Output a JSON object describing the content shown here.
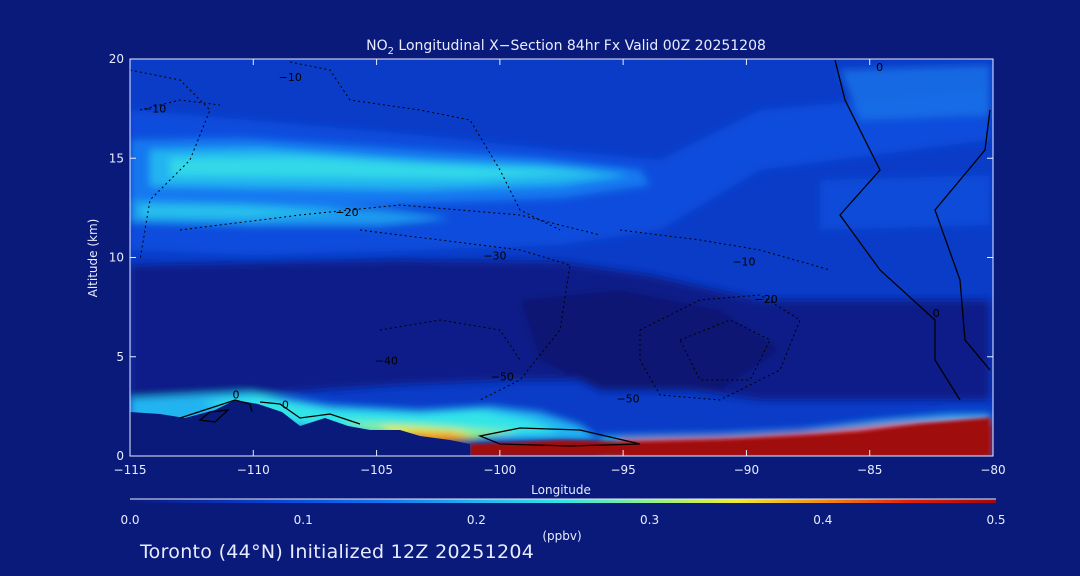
{
  "chart_data": {
    "type": "heatmap",
    "title_prefix": "NO",
    "title_sub": "2",
    "title_rest": " Longitudinal X−Section 84hr  Fx Valid 00Z 20251208",
    "xlabel": "Longitude",
    "ylabel": "Altitude (km)",
    "xlim": [
      -115,
      -80
    ],
    "ylim": [
      0,
      20
    ],
    "x_ticks": [
      {
        "v": -115,
        "label": "−115"
      },
      {
        "v": -110,
        "label": "−110"
      },
      {
        "v": -105,
        "label": "−105"
      },
      {
        "v": -100,
        "label": "−100"
      },
      {
        "v": -95,
        "label": "−95"
      },
      {
        "v": -90,
        "label": "−90"
      },
      {
        "v": -85,
        "label": "−85"
      },
      {
        "v": -80,
        "label": "−80"
      }
    ],
    "y_ticks": [
      {
        "v": 0,
        "label": "0"
      },
      {
        "v": 5,
        "label": "5"
      },
      {
        "v": 10,
        "label": "10"
      },
      {
        "v": 15,
        "label": "15"
      },
      {
        "v": 20,
        "label": "20"
      }
    ],
    "colorbar": {
      "min": 0.0,
      "max": 0.5,
      "unit_label": "(ppbv)",
      "ticks": [
        {
          "v": 0.0,
          "label": "0.0"
        },
        {
          "v": 0.1,
          "label": "0.1"
        },
        {
          "v": 0.2,
          "label": "0.2"
        },
        {
          "v": 0.3,
          "label": "0.3"
        },
        {
          "v": 0.4,
          "label": "0.4"
        },
        {
          "v": 0.5,
          "label": "0.5"
        }
      ],
      "colors": [
        "#0a1a7a",
        "#0b2fb0",
        "#0a50e0",
        "#1478f0",
        "#22b4f0",
        "#32e4e8",
        "#8ef08c",
        "#f0ec30",
        "#f08c16",
        "#e02010",
        "#a00808"
      ]
    },
    "contour_labels": [
      {
        "x": -114.0,
        "y": 17.3,
        "text": "−10"
      },
      {
        "x": -108.5,
        "y": 18.9,
        "text": "−10"
      },
      {
        "x": -106.2,
        "y": 12.1,
        "text": "−20"
      },
      {
        "x": -100.2,
        "y": 9.9,
        "text": "−30"
      },
      {
        "x": -104.6,
        "y": 4.6,
        "text": "−40"
      },
      {
        "x": -99.9,
        "y": 3.8,
        "text": "−50"
      },
      {
        "x": -94.8,
        "y": 2.7,
        "text": "−50"
      },
      {
        "x": -90.1,
        "y": 9.6,
        "text": "−10"
      },
      {
        "x": -89.2,
        "y": 7.7,
        "text": "−20"
      },
      {
        "x": -110.7,
        "y": 2.9,
        "text": "0"
      },
      {
        "x": -108.7,
        "y": 2.4,
        "text": "0"
      },
      {
        "x": -84.6,
        "y": 19.4,
        "text": "0"
      },
      {
        "x": -82.3,
        "y": 7.0,
        "text": "0"
      }
    ]
  },
  "footer": {
    "text": "Toronto (44°N) Initialized 12Z 20251204"
  }
}
